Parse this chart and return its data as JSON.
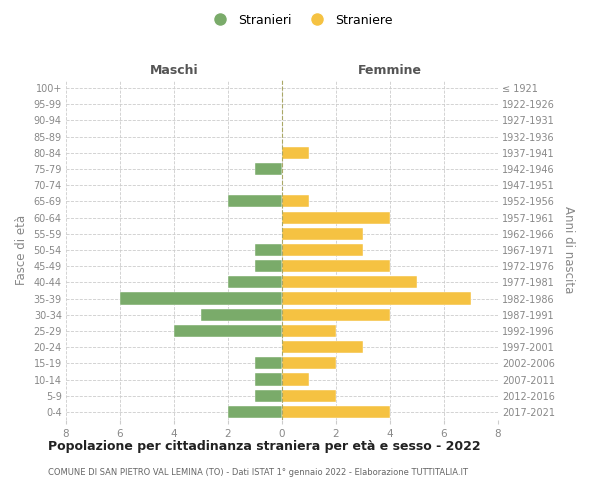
{
  "age_groups": [
    "100+",
    "95-99",
    "90-94",
    "85-89",
    "80-84",
    "75-79",
    "70-74",
    "65-69",
    "60-64",
    "55-59",
    "50-54",
    "45-49",
    "40-44",
    "35-39",
    "30-34",
    "25-29",
    "20-24",
    "15-19",
    "10-14",
    "5-9",
    "0-4"
  ],
  "birth_years": [
    "≤ 1921",
    "1922-1926",
    "1927-1931",
    "1932-1936",
    "1937-1941",
    "1942-1946",
    "1947-1951",
    "1952-1956",
    "1957-1961",
    "1962-1966",
    "1967-1971",
    "1972-1976",
    "1977-1981",
    "1982-1986",
    "1987-1991",
    "1992-1996",
    "1997-2001",
    "2002-2006",
    "2007-2011",
    "2012-2016",
    "2017-2021"
  ],
  "males": [
    0,
    0,
    0,
    0,
    0,
    1,
    0,
    2,
    0,
    0,
    1,
    1,
    2,
    6,
    3,
    4,
    0,
    1,
    1,
    1,
    2
  ],
  "females": [
    0,
    0,
    0,
    0,
    1,
    0,
    0,
    1,
    4,
    3,
    3,
    4,
    5,
    7,
    4,
    2,
    3,
    2,
    1,
    2,
    4
  ],
  "male_color": "#7aab6a",
  "female_color": "#f5c242",
  "title": "Popolazione per cittadinanza straniera per età e sesso - 2022",
  "subtitle": "COMUNE DI SAN PIETRO VAL LEMINA (TO) - Dati ISTAT 1° gennaio 2022 - Elaborazione TUTTITALIA.IT",
  "xlabel_left": "Maschi",
  "xlabel_right": "Femmine",
  "ylabel_left": "Fasce di età",
  "ylabel_right": "Anni di nascita",
  "legend_stranieri": "Stranieri",
  "legend_straniere": "Straniere",
  "xlim": 8,
  "background_color": "#ffffff",
  "grid_color": "#cccccc",
  "text_color": "#888888",
  "label_color": "#555555"
}
